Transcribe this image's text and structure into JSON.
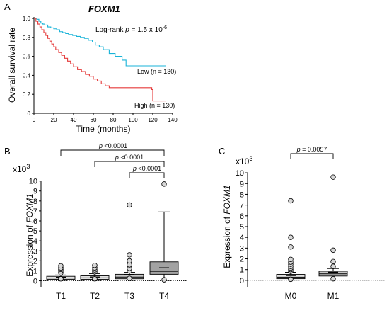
{
  "panels": {
    "a": "A",
    "b": "B",
    "c": "C"
  },
  "chart_data": [
    {
      "panel": "A",
      "type": "line",
      "step": true,
      "title": "FOXM1",
      "annotation_prefix": "Log-rank ",
      "annotation_p": "p",
      "annotation_value": " = 1.5 x 10",
      "annotation_exp": "-6",
      "xlabel": "Time (months)",
      "ylabel": "Overall survival rate",
      "xlim": [
        0,
        140
      ],
      "ylim": [
        0,
        1.0
      ],
      "xticks": [
        "0",
        "20",
        "40",
        "60",
        "80",
        "100",
        "120",
        "140"
      ],
      "yticks": [
        "0",
        "0.2",
        "0.4",
        "0.6",
        "0.8",
        "1.0"
      ],
      "series": [
        {
          "name": "Low (n = 130)",
          "color": "#19b3d8",
          "points": [
            [
              0,
              1.0
            ],
            [
              3,
              0.99
            ],
            [
              5,
              0.97
            ],
            [
              7,
              0.95
            ],
            [
              9,
              0.94
            ],
            [
              11,
              0.93
            ],
            [
              14,
              0.91
            ],
            [
              17,
              0.9
            ],
            [
              20,
              0.89
            ],
            [
              23,
              0.88
            ],
            [
              26,
              0.86
            ],
            [
              29,
              0.85
            ],
            [
              32,
              0.84
            ],
            [
              35,
              0.83
            ],
            [
              39,
              0.82
            ],
            [
              43,
              0.81
            ],
            [
              47,
              0.8
            ],
            [
              51,
              0.79
            ],
            [
              55,
              0.77
            ],
            [
              59,
              0.75
            ],
            [
              62,
              0.72
            ],
            [
              66,
              0.7
            ],
            [
              70,
              0.67
            ],
            [
              76,
              0.63
            ],
            [
              82,
              0.6
            ],
            [
              89,
              0.56
            ],
            [
              93,
              0.5
            ],
            [
              133,
              0.5
            ]
          ]
        },
        {
          "name": "High (n = 130)",
          "color": "#e53a3a",
          "points": [
            [
              0,
              1.0
            ],
            [
              2,
              0.97
            ],
            [
              4,
              0.94
            ],
            [
              6,
              0.91
            ],
            [
              8,
              0.88
            ],
            [
              10,
              0.85
            ],
            [
              12,
              0.82
            ],
            [
              14,
              0.79
            ],
            [
              16,
              0.76
            ],
            [
              18,
              0.73
            ],
            [
              20,
              0.7
            ],
            [
              22,
              0.67
            ],
            [
              25,
              0.64
            ],
            [
              28,
              0.61
            ],
            [
              31,
              0.58
            ],
            [
              34,
              0.55
            ],
            [
              37,
              0.52
            ],
            [
              40,
              0.49
            ],
            [
              44,
              0.46
            ],
            [
              48,
              0.44
            ],
            [
              52,
              0.41
            ],
            [
              56,
              0.39
            ],
            [
              60,
              0.36
            ],
            [
              64,
              0.34
            ],
            [
              68,
              0.31
            ],
            [
              72,
              0.29
            ],
            [
              76,
              0.27
            ],
            [
              119,
              0.25
            ],
            [
              120,
              0.13
            ],
            [
              133,
              0.13
            ]
          ]
        }
      ]
    },
    {
      "panel": "B",
      "type": "box",
      "ylabel_prefix": "Expression of ",
      "ylabel_gene": "FOXM1",
      "yunit_base": "x10",
      "yunit_exp": "3",
      "ylim": [
        -0.6,
        10.4
      ],
      "yticks": [
        "0",
        "1",
        "2",
        "3",
        "4",
        "5",
        "6",
        "7",
        "8",
        "9",
        "10"
      ],
      "categories": [
        "T1",
        "T2",
        "T3",
        "T4"
      ],
      "boxes": [
        {
          "q1": 0.15,
          "median": 0.28,
          "q3": 0.45,
          "whisker_low": 0.02,
          "whisker_high": 0.58,
          "mean": 0.35,
          "color": "#e4e4e4",
          "outliers": [
            0.8,
            1.0,
            1.15,
            1.3,
            1.5,
            0.2
          ]
        },
        {
          "q1": 0.15,
          "median": 0.3,
          "q3": 0.5,
          "whisker_low": 0.02,
          "whisker_high": 0.72,
          "mean": 0.38,
          "color": "#e4e4e4",
          "outliers": [
            0.9,
            1.1,
            1.3,
            1.55,
            0.2
          ]
        },
        {
          "q1": 0.2,
          "median": 0.38,
          "q3": 0.65,
          "whisker_low": 0.03,
          "whisker_high": 0.85,
          "mean": 0.6,
          "color": "#c9c9c9",
          "outliers": [
            1.0,
            1.25,
            1.6,
            2.0,
            2.6,
            7.6,
            0.25
          ]
        },
        {
          "q1": 0.65,
          "median": 0.95,
          "q3": 1.9,
          "whisker_low": 0.25,
          "whisker_high": 6.9,
          "mean": 1.3,
          "color": "#a2a2a2",
          "outliers": [
            9.7,
            0.1
          ]
        }
      ],
      "comparisons": [
        {
          "from": "T1",
          "to": "T4",
          "p": "p",
          "text": " <0.0001"
        },
        {
          "from": "T2",
          "to": "T4",
          "p": "p",
          "text": " <0.0001"
        },
        {
          "from": "T3",
          "to": "T4",
          "p": "p",
          "text": " <0.0001"
        }
      ],
      "reference_line": 0
    },
    {
      "panel": "C",
      "type": "box",
      "ylabel_prefix": "Expression of ",
      "ylabel_gene": "FOXM1",
      "yunit_base": "x10",
      "yunit_exp": "3",
      "ylim": [
        -0.6,
        10.4
      ],
      "yticks": [
        "0",
        "1",
        "2",
        "3",
        "4",
        "5",
        "6",
        "7",
        "8",
        "9",
        "10"
      ],
      "categories": [
        "M0",
        "M1"
      ],
      "boxes": [
        {
          "q1": 0.15,
          "median": 0.3,
          "q3": 0.55,
          "whisker_low": 0.02,
          "whisker_high": 0.75,
          "mean": 0.45,
          "color": "#e4e4e4",
          "outliers": [
            0.85,
            1.0,
            1.15,
            1.3,
            1.5,
            1.7,
            1.95,
            3.1,
            4.0,
            7.4,
            0.1
          ]
        },
        {
          "q1": 0.4,
          "median": 0.6,
          "q3": 0.85,
          "whisker_low": 0.12,
          "whisker_high": 1.1,
          "mean": 0.75,
          "color": "#c9c9c9",
          "outliers": [
            1.3,
            1.75,
            2.8,
            9.6,
            0.15
          ]
        }
      ],
      "comparisons": [
        {
          "from": "M0",
          "to": "M1",
          "p": "p",
          "text": " = 0.0057"
        }
      ],
      "reference_line": 0
    }
  ]
}
